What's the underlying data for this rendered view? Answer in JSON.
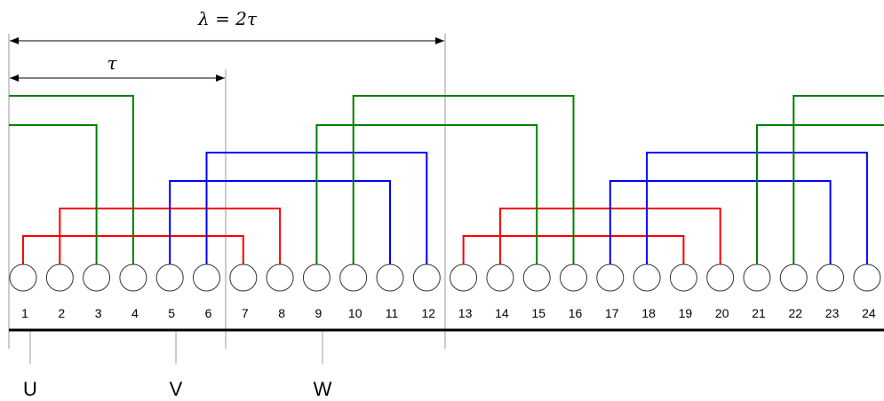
{
  "dimensions": {
    "lambda": "λ = 2τ",
    "tau": "τ"
  },
  "slots": [
    "1",
    "2",
    "3",
    "4",
    "5",
    "6",
    "7",
    "8",
    "9",
    "10",
    "11",
    "12",
    "13",
    "14",
    "15",
    "16",
    "17",
    "18",
    "19",
    "20",
    "21",
    "22",
    "23",
    "24"
  ],
  "phases": [
    {
      "label": "U",
      "color": "#ff0000"
    },
    {
      "label": "V",
      "color": "#0000ff"
    },
    {
      "label": "W",
      "color": "#008000"
    }
  ],
  "colors": {
    "red": "#ff0000",
    "blue": "#0000ff",
    "green": "#008000",
    "lines": "#000000",
    "guides": "#999999"
  }
}
